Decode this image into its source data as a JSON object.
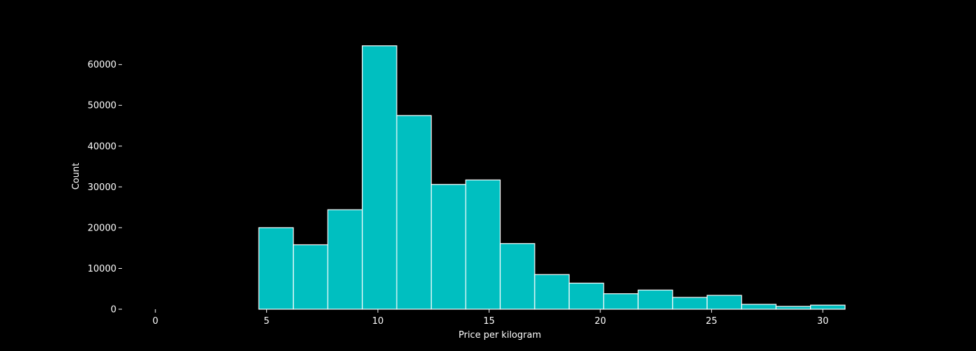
{
  "chart_data": {
    "type": "bar",
    "title": "",
    "xlabel": "Price per kilogram",
    "ylabel": "Count",
    "xlim": [
      -1.5,
      32.5
    ],
    "ylim": [
      0,
      69000
    ],
    "xticks": [
      0,
      5,
      10,
      15,
      20,
      25,
      30
    ],
    "yticks": [
      0,
      10000,
      20000,
      30000,
      40000,
      50000,
      60000
    ],
    "bins": [
      {
        "x0": 0.0,
        "x1": 1.55,
        "value": 0
      },
      {
        "x0": 1.55,
        "x1": 3.1,
        "value": 0
      },
      {
        "x0": 3.1,
        "x1": 4.65,
        "value": 0
      },
      {
        "x0": 4.65,
        "x1": 6.2,
        "value": 20000
      },
      {
        "x0": 6.2,
        "x1": 7.75,
        "value": 15800
      },
      {
        "x0": 7.75,
        "x1": 9.3,
        "value": 24400
      },
      {
        "x0": 9.3,
        "x1": 10.85,
        "value": 64600
      },
      {
        "x0": 10.85,
        "x1": 12.4,
        "value": 47500
      },
      {
        "x0": 12.4,
        "x1": 13.95,
        "value": 30600
      },
      {
        "x0": 13.95,
        "x1": 15.5,
        "value": 31700
      },
      {
        "x0": 15.5,
        "x1": 17.05,
        "value": 16100
      },
      {
        "x0": 17.05,
        "x1": 18.6,
        "value": 8500
      },
      {
        "x0": 18.6,
        "x1": 20.15,
        "value": 6400
      },
      {
        "x0": 20.15,
        "x1": 21.7,
        "value": 3800
      },
      {
        "x0": 21.7,
        "x1": 23.25,
        "value": 4700
      },
      {
        "x0": 23.25,
        "x1": 24.8,
        "value": 2900
      },
      {
        "x0": 24.8,
        "x1": 26.35,
        "value": 3400
      },
      {
        "x0": 26.35,
        "x1": 27.9,
        "value": 1200
      },
      {
        "x0": 27.9,
        "x1": 29.45,
        "value": 700
      },
      {
        "x0": 29.45,
        "x1": 31.0,
        "value": 1000
      }
    ],
    "grid": false,
    "legend": "none",
    "colors": {
      "background": "#000000",
      "bar_fill": "#00bfc0",
      "bar_edge": "#ffffff",
      "text": "#ffffff"
    }
  }
}
